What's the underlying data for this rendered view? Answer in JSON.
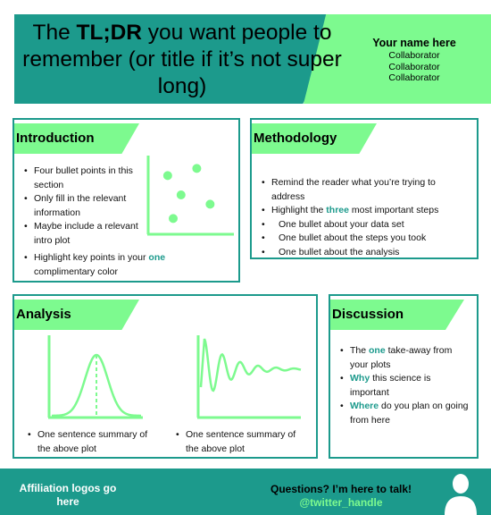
{
  "header": {
    "title_pre": "The ",
    "title_bold": "TL;DR",
    "title_post": " you want people to remember (or title if it’s not super long)",
    "author": "Your name here",
    "collaborators": [
      "Collaborator",
      "Collaborator",
      "Collaborator"
    ]
  },
  "introduction": {
    "heading": "Introduction",
    "bullets": [
      "Four bullet points in this section",
      "Only fill in the relevant information",
      "Maybe include a relevant intro plot"
    ],
    "highlight_pre": "Highlight key points in your ",
    "highlight_word": "one",
    "highlight_post": " complimentary color",
    "scatter_points": [
      [
        0.18,
        0.28
      ],
      [
        0.55,
        0.18
      ],
      [
        0.35,
        0.55
      ],
      [
        0.72,
        0.68
      ],
      [
        0.25,
        0.88
      ]
    ]
  },
  "methodology": {
    "heading": "Methodology",
    "bullet1": "Remind the reader what you’re trying to address",
    "bullet2_pre": "Highlight the ",
    "bullet2_word": "three",
    "bullet2_post": " most important steps",
    "steps": [
      "One bullet about your data set",
      "One bullet about the steps you took",
      "One bullet about the analysis"
    ]
  },
  "analysis": {
    "heading": "Analysis",
    "caption_left": "One sentence summary of the above plot",
    "caption_right": "One sentence summary of the above plot"
  },
  "discussion": {
    "heading": "Discussion",
    "b1_pre": "The ",
    "b1_word": "one",
    "b1_post": " take-away from your plots",
    "b2_word": "Why",
    "b2_post": " this science is important",
    "b3_word": "Where",
    "b3_post": " do you plan on going from here"
  },
  "footer": {
    "affiliation": "Affiliation logos go here",
    "questions": "Questions? I’m here to talk!",
    "handle": "@twitter_handle",
    "avatar_icon": "person-silhouette-icon"
  },
  "colors": {
    "teal": "#1c9a8c",
    "green": "#7dfa8f"
  }
}
